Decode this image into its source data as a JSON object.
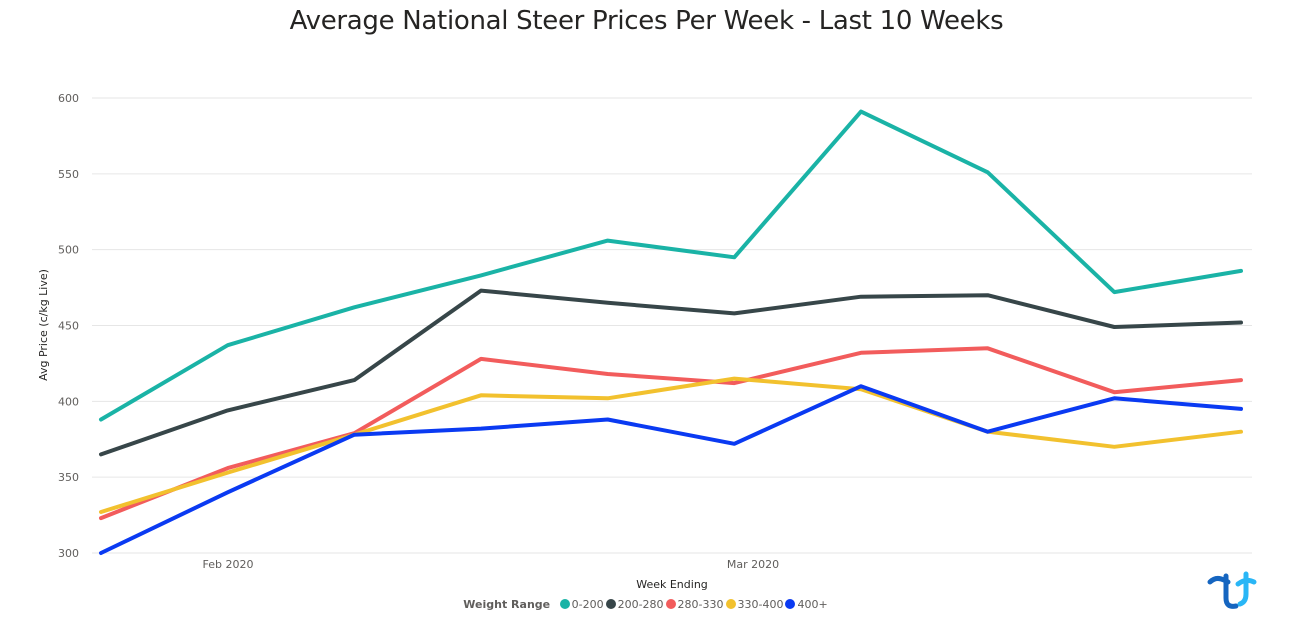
{
  "title": "Average National Steer Prices Per Week - Last 10 Weeks",
  "chart_data": {
    "type": "line",
    "title": "Average National Steer Prices Per Week - Last 10 Weeks",
    "xlabel": "Week Ending",
    "ylabel": "Avg Price (c/kg Live)",
    "x_tick_labels": [
      "Feb 2020",
      "Mar 2020"
    ],
    "y_ticks": [
      300,
      350,
      400,
      450,
      500,
      550,
      600
    ],
    "ylim": [
      300,
      610
    ],
    "grid": true,
    "legend_title": "Weight Range",
    "legend_placement": "bottom",
    "series": [
      {
        "name": "0-200",
        "color": "#1AB3A6",
        "values": [
          388,
          437,
          462,
          483,
          506,
          495,
          591,
          551,
          472,
          486
        ]
      },
      {
        "name": "200-280",
        "color": "#374649",
        "values": [
          365,
          394,
          414,
          473,
          465,
          458,
          469,
          470,
          449,
          452
        ]
      },
      {
        "name": "280-330",
        "color": "#F25C5C",
        "values": [
          323,
          356,
          379,
          428,
          418,
          412,
          432,
          435,
          406,
          414
        ]
      },
      {
        "name": "330-400",
        "color": "#F2C12E",
        "values": [
          327,
          353,
          378,
          404,
          402,
          415,
          408,
          380,
          370,
          380
        ]
      },
      {
        "name": "400+",
        "color": "#0A3AF2",
        "values": [
          300,
          340,
          378,
          382,
          388,
          372,
          410,
          380,
          402,
          395
        ]
      }
    ]
  },
  "logo": {
    "name": "brand-logo-icon",
    "colors": [
      "#1565C0",
      "#29B6F6"
    ]
  }
}
